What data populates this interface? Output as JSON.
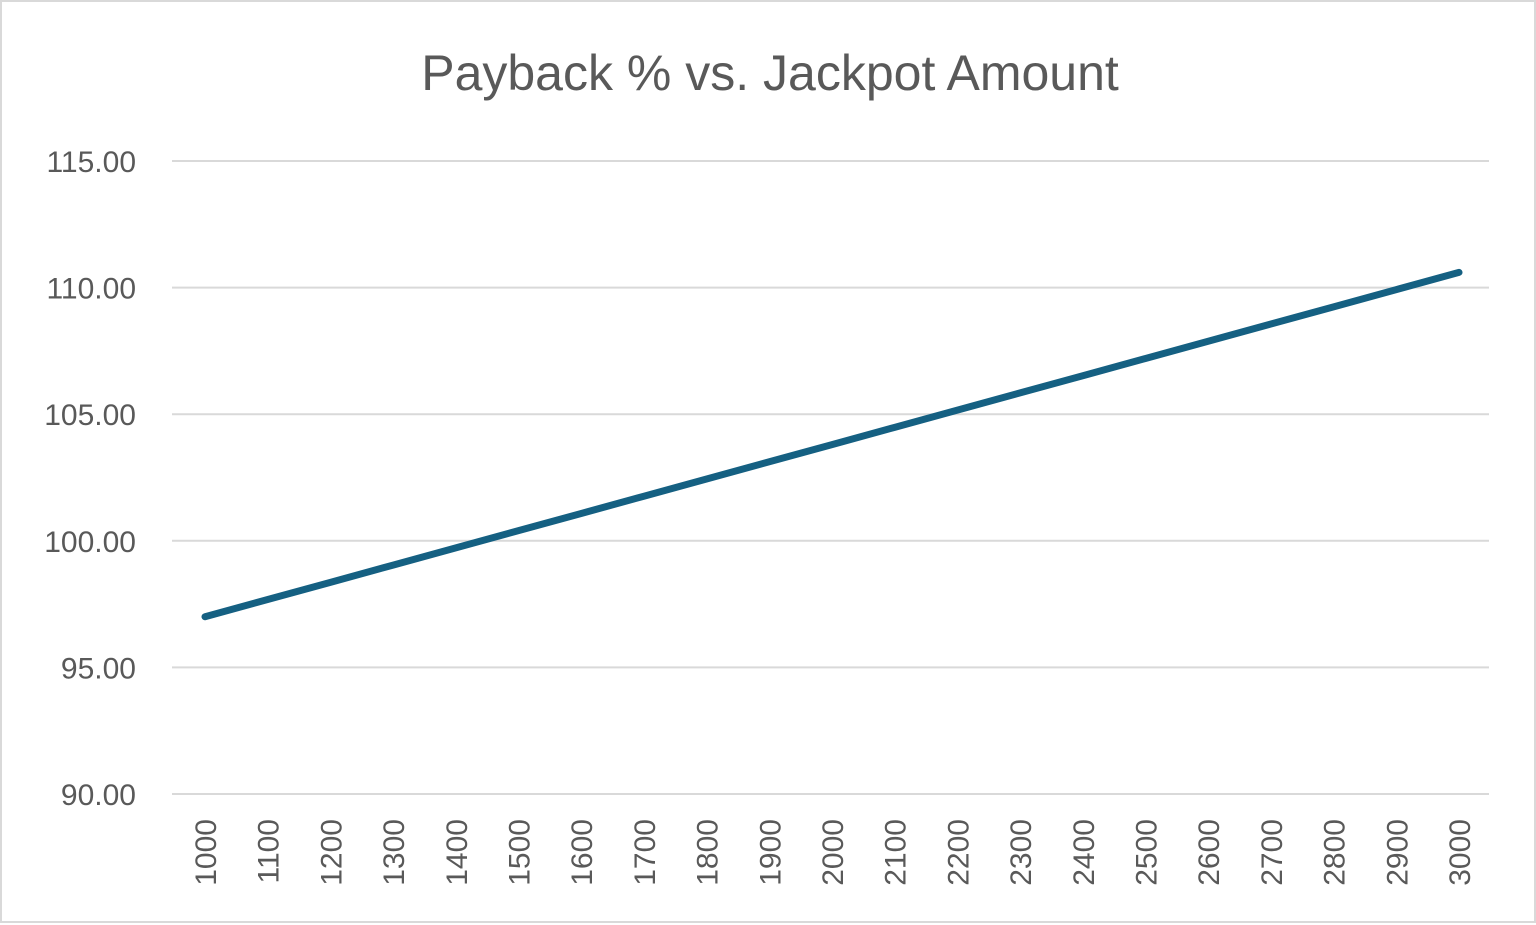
{
  "chart_data": {
    "type": "line",
    "title": "Payback % vs. Jackpot Amount",
    "xlabel": "",
    "ylabel": "",
    "x": [
      1000,
      1100,
      1200,
      1300,
      1400,
      1500,
      1600,
      1700,
      1800,
      1900,
      2000,
      2100,
      2200,
      2300,
      2400,
      2500,
      2600,
      2700,
      2800,
      2900,
      3000
    ],
    "categories": [
      "1000",
      "1100",
      "1200",
      "1300",
      "1400",
      "1500",
      "1600",
      "1700",
      "1800",
      "1900",
      "2000",
      "2100",
      "2200",
      "2300",
      "2400",
      "2500",
      "2600",
      "2700",
      "2800",
      "2900",
      "3000"
    ],
    "series": [
      {
        "values": [
          97.0,
          97.68,
          98.36,
          99.04,
          99.72,
          100.4,
          101.08,
          101.76,
          102.44,
          103.12,
          103.8,
          104.48,
          105.16,
          105.84,
          106.52,
          107.2,
          107.88,
          108.56,
          109.24,
          109.92,
          110.6
        ],
        "color": "#156082"
      }
    ],
    "ylim": [
      90,
      115
    ],
    "yticks": [
      90,
      95,
      100,
      105,
      110,
      115
    ],
    "ytick_labels": [
      "90.00",
      "95.00",
      "100.00",
      "105.00",
      "110.00",
      "115.00"
    ],
    "grid": true,
    "legend": "none"
  }
}
